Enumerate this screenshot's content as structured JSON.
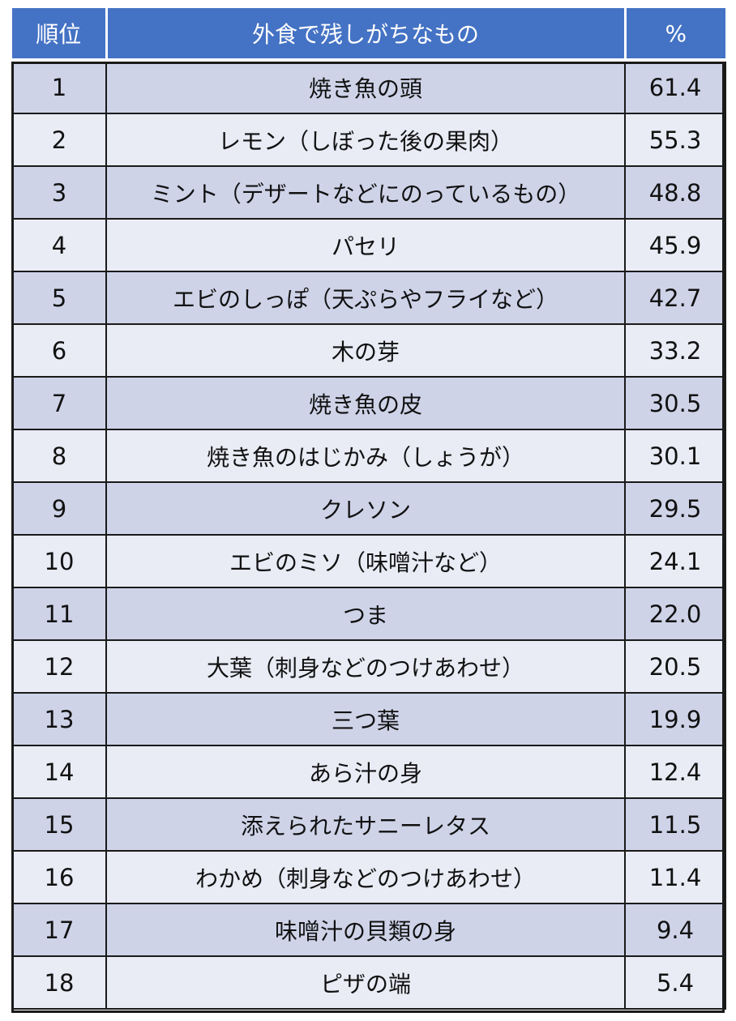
{
  "headers": {
    "rank": "順位",
    "item": "外食で残しがちなもの",
    "pct": "%"
  },
  "rows": [
    {
      "rank": "1",
      "item": "焼き魚の頭",
      "pct": "61.4"
    },
    {
      "rank": "2",
      "item": "レモン（しぼった後の果肉）",
      "pct": "55.3"
    },
    {
      "rank": "3",
      "item": "ミント（デザートなどにのっているもの）",
      "pct": "48.8"
    },
    {
      "rank": "4",
      "item": "パセリ",
      "pct": "45.9"
    },
    {
      "rank": "5",
      "item": "エビのしっぽ（天ぷらやフライなど）",
      "pct": "42.7"
    },
    {
      "rank": "6",
      "item": "木の芽",
      "pct": "33.2"
    },
    {
      "rank": "7",
      "item": "焼き魚の皮",
      "pct": "30.5"
    },
    {
      "rank": "8",
      "item": "焼き魚のはじかみ（しょうが）",
      "pct": "30.1"
    },
    {
      "rank": "9",
      "item": "クレソン",
      "pct": "29.5"
    },
    {
      "rank": "10",
      "item": "エビのミソ（味噌汁など）",
      "pct": "24.1"
    },
    {
      "rank": "11",
      "item": "つま",
      "pct": "22.0"
    },
    {
      "rank": "12",
      "item": "大葉（刺身などのつけあわせ）",
      "pct": "20.5"
    },
    {
      "rank": "13",
      "item": "三つ葉",
      "pct": "19.9"
    },
    {
      "rank": "14",
      "item": "あら汁の身",
      "pct": "12.4"
    },
    {
      "rank": "15",
      "item": "添えられたサニーレタス",
      "pct": "11.5"
    },
    {
      "rank": "16",
      "item": "わかめ（刺身などのつけあわせ）",
      "pct": "11.4"
    },
    {
      "rank": "17",
      "item": "味噌汁の貝類の身",
      "pct": "9.4"
    },
    {
      "rank": "18",
      "item": "ピザの端",
      "pct": "5.4"
    }
  ],
  "colors": {
    "header_bg": "#4472c4",
    "row_dark": "#ced3e8",
    "row_light": "#e9ebf5"
  }
}
